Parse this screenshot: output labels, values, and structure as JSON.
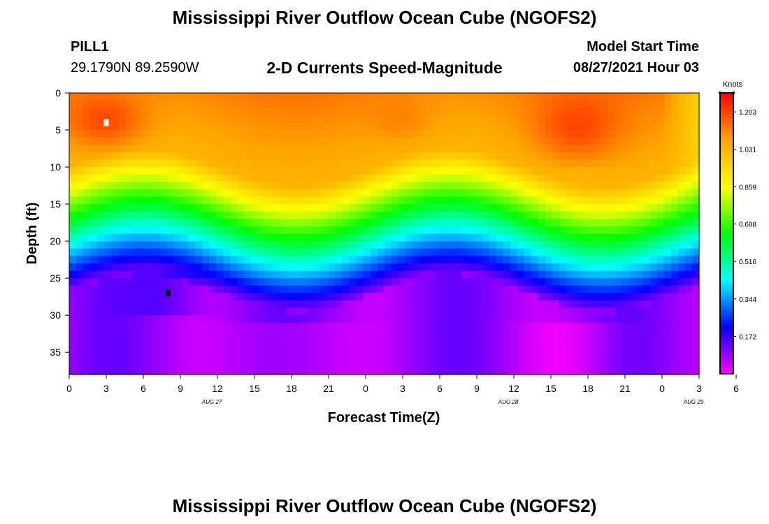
{
  "header": {
    "title": "Mississippi River Outflow Ocean Cube (NGOFS2)",
    "station_name": "PILL1",
    "station_coords": "29.1790N  89.2590W",
    "plot_title": "2-D Currents Speed-Magnitude",
    "model_start_label": "Model Start Time",
    "model_start_value": "08/27/2021 Hour 03"
  },
  "footer": {
    "title": "Mississippi River Outflow Ocean Cube (NGOFS2)"
  },
  "chart_data": {
    "type": "heatmap",
    "title": "2-D Currents Speed-Magnitude",
    "xlabel": "Forecast Time(Z)",
    "ylabel": "Depth (ft)",
    "x_range_hours": [
      0,
      51
    ],
    "x_tick_labels": [
      "0",
      "3",
      "6",
      "9",
      "12",
      "15",
      "18",
      "21",
      "0",
      "3",
      "6",
      "9",
      "12",
      "15",
      "18",
      "21",
      "0",
      "3",
      "6"
    ],
    "x_tick_step_hours": 3,
    "date_labels": [
      {
        "text": "AUG 27",
        "hour": 12
      },
      {
        "text": "AUG 28",
        "hour": 36
      },
      {
        "text": "AUG 29",
        "hour": 51
      }
    ],
    "y_range_ft": [
      0,
      38
    ],
    "y_inverted": true,
    "y_ticks": [
      0,
      5,
      10,
      15,
      20,
      25,
      30,
      35
    ],
    "grid": false,
    "colorbar": {
      "label": "Knots",
      "ticks": [
        "1.203",
        "1.031",
        "0.859",
        "0.688",
        "0.516",
        "0.344",
        "0.172"
      ],
      "tick_values": [
        1.203,
        1.031,
        0.859,
        0.688,
        0.516,
        0.344,
        0.172
      ],
      "range": [
        0.0,
        1.29
      ],
      "colors": [
        "#ff00ff",
        "#0000ff",
        "#00ffff",
        "#00ff00",
        "#ffff00",
        "#ffa500",
        "#ff0000"
      ]
    },
    "markers": [
      {
        "name": "max-speed",
        "hour": 3,
        "depth_ft": 4,
        "color": "#ffffff"
      },
      {
        "name": "min-speed",
        "hour": 8,
        "depth_ft": 27,
        "color": "#000000"
      }
    ],
    "speed_description": {
      "surface_0_10ft": "1.0 - 1.25 knots (orange/red)",
      "mid_12_19ft": "0.55 - 0.95 knots",
      "bottom_25_38ft": "0.02 - 0.25 knots (purple/magenta)"
    }
  }
}
